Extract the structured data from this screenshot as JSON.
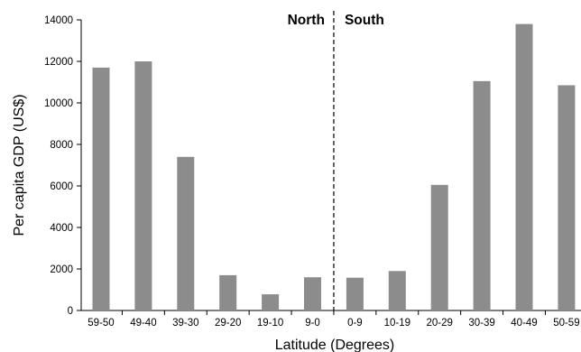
{
  "chart_data": {
    "type": "bar",
    "categories": [
      "59-50",
      "49-40",
      "39-30",
      "29-20",
      "19-10",
      "9-0",
      "0-9",
      "10-19",
      "20-29",
      "30-39",
      "40-49",
      "50-59"
    ],
    "values": [
      11700,
      12000,
      7400,
      1700,
      780,
      1600,
      1580,
      1900,
      6050,
      11050,
      13800,
      10850
    ],
    "xlabel": "Latitude (Degrees)",
    "ylabel": "Per capita GDP (US$)",
    "ylim": [
      0,
      14000
    ],
    "yticks": [
      0,
      2000,
      4000,
      6000,
      8000,
      10000,
      12000,
      14000
    ],
    "bar_color": "#8c8c8c",
    "divider": {
      "after_category_index": 5,
      "style": "dashed",
      "left_label": "North",
      "right_label": "South"
    },
    "grid": false
  }
}
